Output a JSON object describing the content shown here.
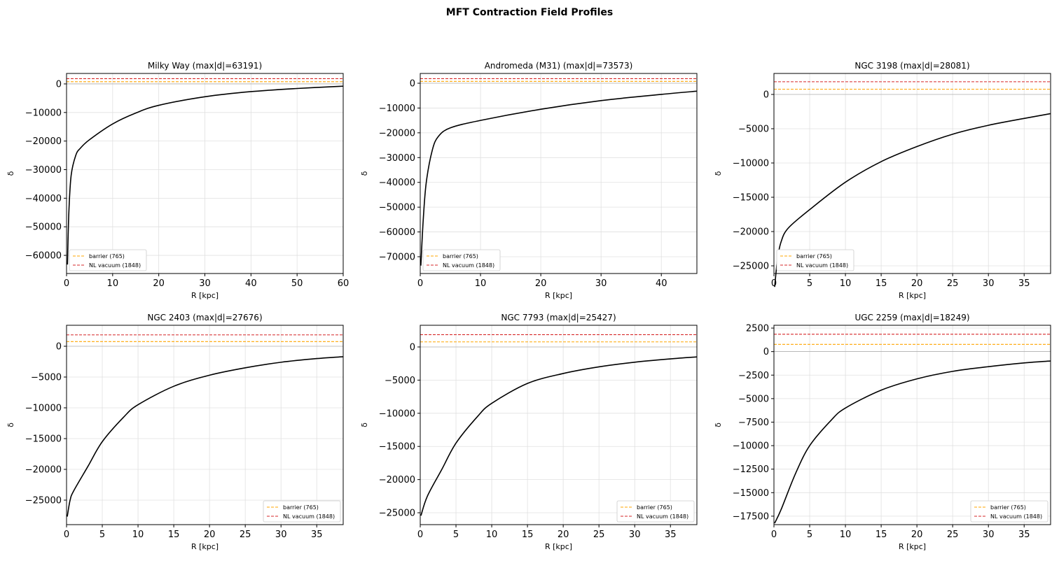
{
  "suptitle": "MFT Contraction Field Profiles",
  "chart_data": [
    {
      "type": "line",
      "title": "Milky Way (max|d|=63191)",
      "xlabel": "R [kpc]",
      "ylabel": "δ",
      "xlim": [
        0,
        60
      ],
      "ylim": [
        -66350,
        3660
      ],
      "xticks": [
        0,
        10,
        20,
        30,
        40,
        50,
        60
      ],
      "yticks": [
        0,
        -10000,
        -20000,
        -30000,
        -40000,
        -50000,
        -60000
      ],
      "legend": "lower-left",
      "x": [
        0.2,
        0.5,
        1,
        2,
        3,
        5,
        10,
        15,
        20,
        30,
        40,
        50,
        60
      ],
      "y": [
        -63191,
        -45000,
        -32000,
        -25000,
        -22500,
        -19500,
        -14000,
        -10200,
        -7500,
        -4500,
        -2700,
        -1600,
        -800
      ]
    },
    {
      "type": "line",
      "title": "Andromeda (M31) (max|d|=73573)",
      "xlabel": "R [kpc]",
      "ylabel": "δ",
      "xlim": [
        0,
        45.9
      ],
      "ylim": [
        -76770,
        3950
      ],
      "xticks": [
        0,
        10,
        20,
        30,
        40
      ],
      "yticks": [
        0,
        -10000,
        -20000,
        -30000,
        -40000,
        -50000,
        -60000,
        -70000
      ],
      "legend": "lower-left",
      "x": [
        0.1,
        0.5,
        1,
        2,
        3,
        5,
        10,
        20,
        30,
        40,
        45.9
      ],
      "y": [
        -73573,
        -55000,
        -40000,
        -27000,
        -21500,
        -18000,
        -15000,
        -10500,
        -7000,
        -4500,
        -3200
      ]
    },
    {
      "type": "line",
      "title": "NGC 3198 (max|d|=28081)",
      "xlabel": "R [kpc]",
      "ylabel": "δ",
      "xlim": [
        0,
        38.7
      ],
      "ylim": [
        -26120,
        3060
      ],
      "xticks": [
        0,
        5,
        10,
        15,
        20,
        25,
        30,
        35
      ],
      "yticks": [
        0,
        -5000,
        -10000,
        -15000,
        -20000,
        -25000
      ],
      "legend": "lower-left",
      "x": [
        0.1,
        0.5,
        1,
        2,
        5,
        10,
        15,
        20,
        25,
        30,
        35,
        38.7
      ],
      "y": [
        -28081,
        -24000,
        -21500,
        -19500,
        -16800,
        -12800,
        -9800,
        -7600,
        -5800,
        -4500,
        -3500,
        -2800
      ]
    },
    {
      "type": "line",
      "title": "NGC 2403 (max|d|=27676)",
      "xlabel": "R [kpc]",
      "ylabel": "δ",
      "xlim": [
        0,
        38.7
      ],
      "ylim": [
        -28980,
        3410
      ],
      "xticks": [
        0,
        5,
        10,
        15,
        20,
        25,
        30,
        35
      ],
      "yticks": [
        0,
        -5000,
        -10000,
        -15000,
        -20000,
        -25000
      ],
      "legend": "lower-right",
      "x": [
        0.1,
        0.5,
        1,
        3,
        5,
        8,
        10,
        15,
        20,
        25,
        30,
        35,
        38.7
      ],
      "y": [
        -27676,
        -25000,
        -23500,
        -19500,
        -15500,
        -11500,
        -9500,
        -6500,
        -4700,
        -3500,
        -2600,
        -2000,
        -1700
      ]
    },
    {
      "type": "line",
      "title": "NGC 7793 (max|d|=25427)",
      "xlabel": "R [kpc]",
      "ylabel": "δ",
      "xlim": [
        0,
        38.7
      ],
      "ylim": [
        -26790,
        3270
      ],
      "xticks": [
        0,
        5,
        10,
        15,
        20,
        25,
        30,
        35
      ],
      "yticks": [
        0,
        -5000,
        -10000,
        -15000,
        -20000,
        -25000
      ],
      "legend": "lower-right",
      "x": [
        0.1,
        1,
        3,
        5,
        8,
        10,
        15,
        20,
        25,
        30,
        35,
        38.7
      ],
      "y": [
        -25427,
        -22500,
        -18500,
        -14500,
        -10500,
        -8500,
        -5500,
        -4000,
        -3000,
        -2300,
        -1800,
        -1500
      ]
    },
    {
      "type": "line",
      "title": "UGC 2259 (max|d|=18249)",
      "xlabel": "R [kpc]",
      "ylabel": "δ",
      "xlim": [
        0,
        38.7
      ],
      "ylim": [
        -18400,
        2800
      ],
      "xticks": [
        0,
        5,
        10,
        15,
        20,
        25,
        30,
        35
      ],
      "yticks": [
        2500,
        0,
        -2500,
        -5000,
        -7500,
        -10000,
        -12500,
        -15000,
        -17500
      ],
      "legend": "lower-right",
      "x": [
        0.1,
        1,
        3,
        5,
        8,
        10,
        15,
        20,
        25,
        30,
        35,
        38.7
      ],
      "y": [
        -18249,
        -16800,
        -13000,
        -10000,
        -7300,
        -6000,
        -4100,
        -2900,
        -2100,
        -1600,
        -1200,
        -1000
      ]
    }
  ],
  "reference_lines": [
    {
      "name": "barrier (765)",
      "value": 765,
      "color": "#ffa500"
    },
    {
      "name": "NL vacuum (1848)",
      "value": 1848,
      "color": "#d62728"
    }
  ],
  "curve_color": "#000000",
  "grid": true
}
